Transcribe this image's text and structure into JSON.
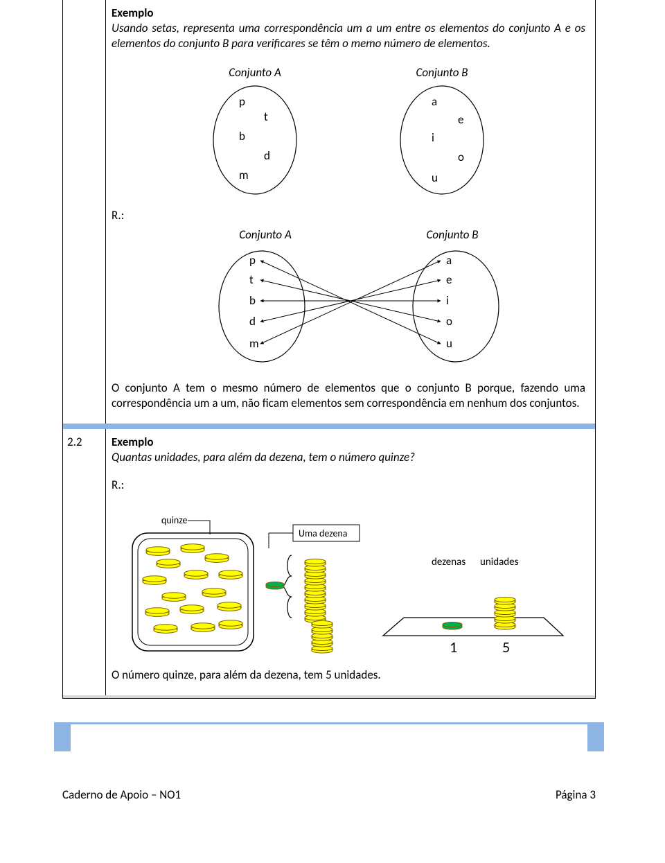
{
  "section1": {
    "title": "Exemplo",
    "prompt": "Usando setas, representa uma correspondência um a um entre os elementos do conjunto A e os elementos do conjunto B para verificares se têm o memo número de elementos.",
    "setA_label": "Conjunto A",
    "setB_label": "Conjunto B",
    "setA_items": [
      "p",
      "t",
      "b",
      "d",
      "m"
    ],
    "setB_items": [
      "a",
      "e",
      "i",
      "o",
      "u"
    ],
    "response_label": "R.:",
    "setA_label2": "Conjunto A",
    "setB_label2": "Conjunto B",
    "edges": [
      [
        0,
        4
      ],
      [
        1,
        3
      ],
      [
        2,
        2
      ],
      [
        3,
        1
      ],
      [
        4,
        0
      ]
    ],
    "conclusion": "O conjunto A tem o mesmo número de elementos que o conjunto B porque, fazendo uma correspondência um a um, não ficam elementos sem correspondência em nenhum dos conjuntos.",
    "ellipse_stroke": "#000000",
    "ellipse_fill": "#ffffff",
    "text_color": "#000000"
  },
  "section2": {
    "num": "2.2",
    "title": "Exemplo",
    "question": "Quantas unidades, para além da dezena, tem o número quinze?",
    "response_label": "R.:",
    "quinze_label": "quinze",
    "dezena_label": "Uma dezena",
    "dezenas_hdr": "dezenas",
    "unidades_hdr": "unidades",
    "dezenas_val": "1",
    "unidades_val": "5",
    "conclusion": "O número quinze, para além da dezena, tem 5 unidades.",
    "coin_yellow": "#ffff00",
    "coin_green": "#00b050",
    "coin_stroke": "#7f6000",
    "box_stroke": "#000000"
  },
  "footer": {
    "left": "Caderno de Apoio – NO1",
    "right": "Página 3"
  },
  "colors": {
    "blue_bar": "#8eb4e3",
    "grey_bar": "#d9d9d9"
  }
}
